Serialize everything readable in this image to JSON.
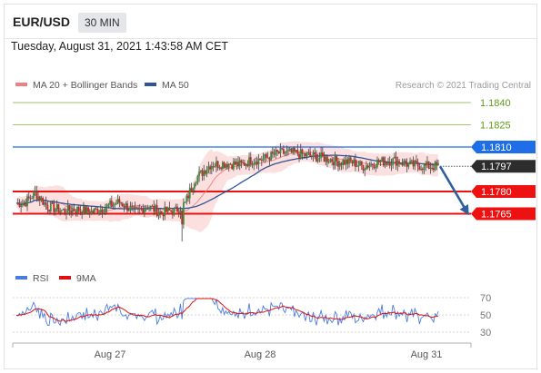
{
  "header": {
    "symbol": "EUR/USD",
    "timeframe": "30 MIN"
  },
  "datetime": "Tuesday, August 31, 2021 1:43:58 AM CET",
  "chart_data": [
    {
      "type": "candlestick",
      "legend": [
        {
          "name": "MA 20 + Bollinger Bands",
          "color": "#f08080"
        },
        {
          "name": "MA 50",
          "color": "#2f5597"
        }
      ],
      "attribution": "Research © 2021 Trading Central",
      "x_ticks": [
        "Aug 27",
        "Aug 28",
        "Aug 31"
      ],
      "ylim": [
        1.1745,
        1.1847
      ],
      "levels": [
        {
          "value": 1.184,
          "label": "1.1840",
          "kind": "target",
          "color": "#7cb342"
        },
        {
          "value": 1.1825,
          "label": "1.1825",
          "kind": "target",
          "color": "#7cb342"
        },
        {
          "value": 1.181,
          "label": "1.1810",
          "kind": "resistance",
          "color": "#1e6ee8"
        },
        {
          "value": 1.1797,
          "label": "1.1797",
          "kind": "last",
          "color": "#2d2d2d"
        },
        {
          "value": 1.178,
          "label": "1.1780",
          "kind": "support",
          "color": "#ee1111"
        },
        {
          "value": 1.1765,
          "label": "1.1765",
          "kind": "support",
          "color": "#ee1111"
        }
      ],
      "projection": {
        "from": 1.1797,
        "to": 1.1765,
        "color": "#2e5f9f"
      }
    },
    {
      "type": "line",
      "legend": [
        {
          "name": "RSI",
          "color": "#4a7de0"
        },
        {
          "name": "9MA",
          "color": "#e01010"
        }
      ],
      "y_ticks": [
        "70",
        "50",
        "30"
      ],
      "ylim": [
        25,
        75
      ]
    }
  ]
}
